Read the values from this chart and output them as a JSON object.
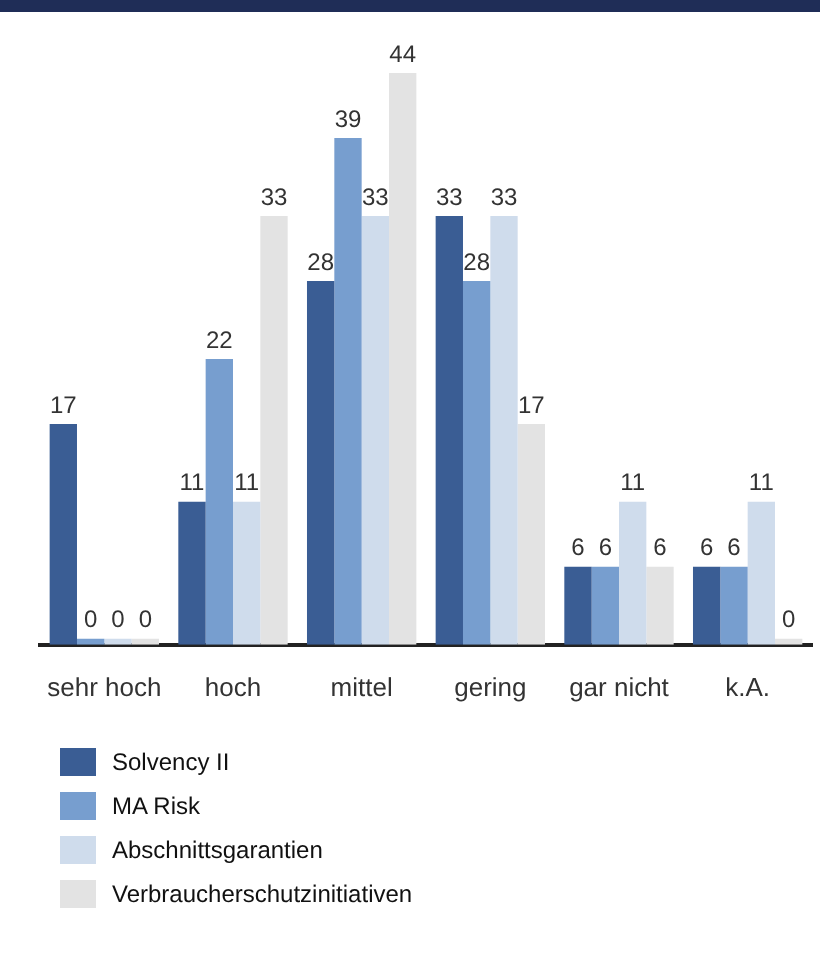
{
  "chart_data": {
    "type": "bar",
    "categories": [
      "sehr hoch",
      "hoch",
      "mittel",
      "gering",
      "gar nicht",
      "k.A."
    ],
    "series": [
      {
        "name": "Solvency II",
        "color": "#3a5d94",
        "values": [
          17,
          11,
          28,
          33,
          6,
          6
        ]
      },
      {
        "name": "MA Risk",
        "color": "#779ecf",
        "values": [
          0,
          22,
          39,
          28,
          6,
          6
        ]
      },
      {
        "name": "Abschnittsgarantien",
        "color": "#cfdcec",
        "values": [
          0,
          11,
          33,
          33,
          11,
          11
        ]
      },
      {
        "name": "Verbraucherschutzinitiativen",
        "color": "#e3e3e3",
        "values": [
          0,
          33,
          44,
          17,
          6,
          0
        ]
      }
    ],
    "data_labels": true,
    "legend": "bottom",
    "grid": false
  }
}
